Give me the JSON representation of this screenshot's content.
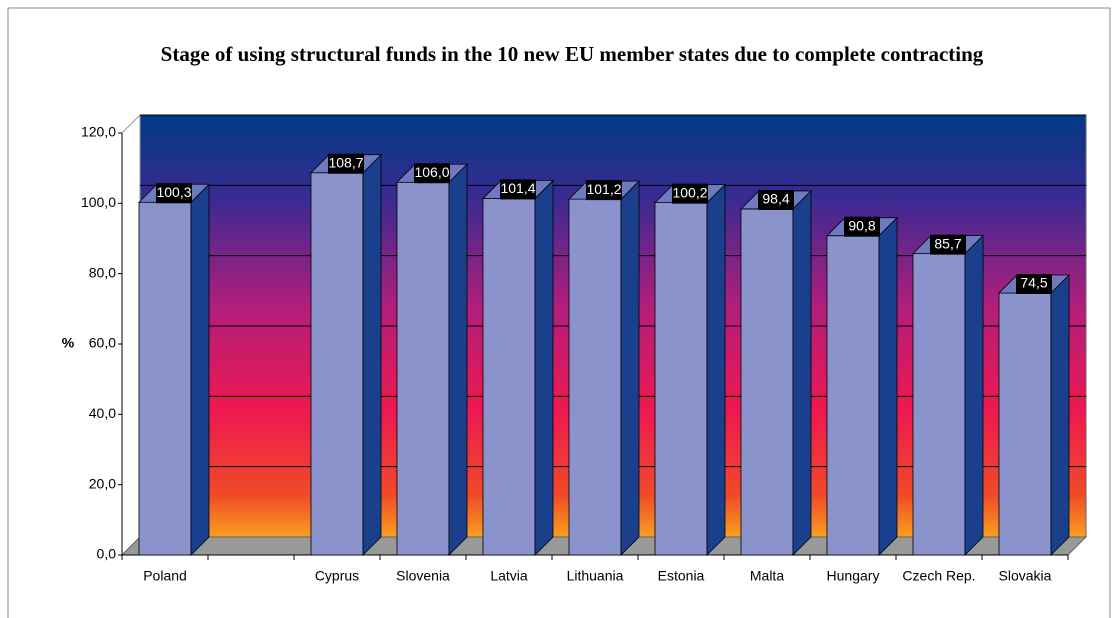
{
  "chart_data": {
    "type": "bar3d",
    "title": "Stage of using structural funds in the 10 new EU member states due to complete contracting",
    "ylabel": "%",
    "categories": [
      "Poland",
      null,
      "Cyprus",
      "Slovenia",
      "Latvia",
      "Lithuania",
      "Estonia",
      "Malta",
      "Hungary",
      "Czech Rep.",
      "Slovakia"
    ],
    "values": [
      100.3,
      null,
      108.7,
      106.0,
      101.4,
      101.2,
      100.2,
      98.4,
      90.8,
      85.7,
      74.5
    ],
    "value_labels": [
      "100,3",
      null,
      "108,7",
      "106,0",
      "101,4",
      "101,2",
      "100,2",
      "98,4",
      "90,8",
      "85,7",
      "74,5"
    ],
    "color": "#8b93cc",
    "ylim": [
      0,
      120
    ],
    "yticks": [
      {
        "value": 0,
        "label": "0,0"
      },
      {
        "value": 20,
        "label": "20,0"
      },
      {
        "value": 40,
        "label": "40,0"
      },
      {
        "value": 60,
        "label": "60,0"
      },
      {
        "value": 80,
        "label": "80,0"
      },
      {
        "value": 100,
        "label": "100,0"
      },
      {
        "value": 120,
        "label": "120,0"
      }
    ],
    "grid": true
  }
}
